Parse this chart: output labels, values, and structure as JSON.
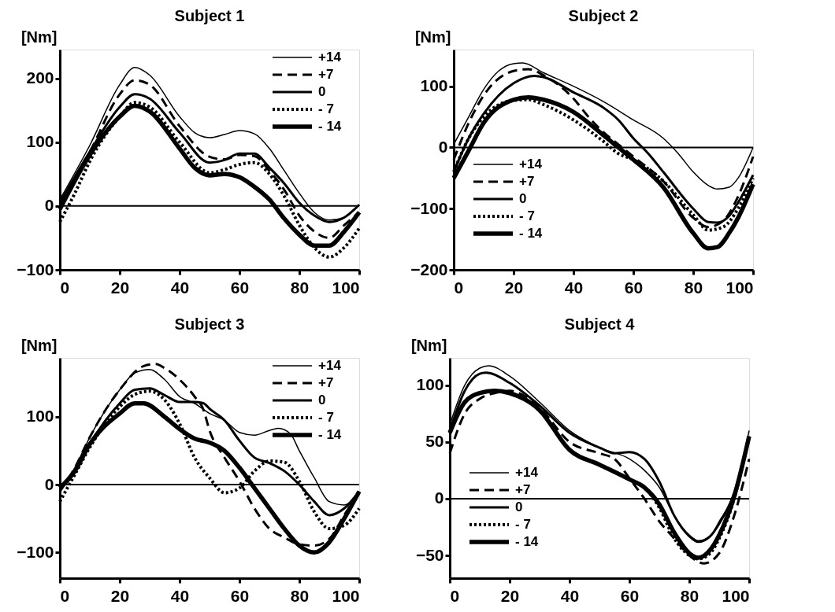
{
  "chart_data": [
    {
      "type": "line",
      "title": "Subject 1",
      "ylabel": "[Nm]",
      "xlim": [
        0,
        100
      ],
      "xticks": [
        0,
        20,
        40,
        60,
        80,
        100
      ],
      "ylim": [
        -100,
        245
      ],
      "yticks": [
        -100,
        0,
        100,
        200
      ],
      "grid": false,
      "legend": "top right",
      "marker": "none",
      "ref_lines": [
        {
          "axis": "y",
          "value": 0
        }
      ],
      "series": [
        {
          "name": "+14",
          "color": "#000000",
          "line_style": "solid",
          "x": [
            0,
            10,
            20,
            25,
            30,
            40,
            45,
            50,
            55,
            60,
            65,
            70,
            75,
            80,
            85,
            90,
            95,
            100
          ],
          "values": [
            10,
            95,
            190,
            217,
            205,
            140,
            115,
            107,
            112,
            118,
            113,
            90,
            55,
            20,
            -10,
            -22,
            -18,
            2
          ]
        },
        {
          "name": "+7",
          "color": "#000000",
          "line_style": "dashed",
          "x": [
            0,
            10,
            20,
            25,
            30,
            40,
            50,
            55,
            60,
            65,
            70,
            75,
            80,
            85,
            90,
            95,
            100
          ],
          "values": [
            5,
            85,
            175,
            197,
            190,
            125,
            77,
            73,
            80,
            78,
            55,
            25,
            -15,
            -40,
            -50,
            -30,
            -10
          ]
        },
        {
          "name": "0",
          "color": "#000000",
          "line_style": "solid",
          "x": [
            0,
            10,
            20,
            25,
            30,
            40,
            50,
            55,
            60,
            65,
            70,
            75,
            80,
            85,
            90,
            95,
            100
          ],
          "values": [
            5,
            85,
            155,
            175,
            168,
            115,
            68,
            72,
            82,
            82,
            60,
            35,
            5,
            -15,
            -25,
            -18,
            2
          ]
        },
        {
          "name": "- 7",
          "color": "#000000",
          "line_style": "dotted",
          "x": [
            0,
            5,
            10,
            20,
            25,
            30,
            40,
            50,
            55,
            60,
            65,
            70,
            75,
            80,
            85,
            90,
            95,
            100
          ],
          "values": [
            -25,
            20,
            70,
            140,
            162,
            155,
            100,
            52,
            57,
            65,
            68,
            50,
            15,
            -30,
            -65,
            -80,
            -65,
            -35
          ]
        },
        {
          "name": "- 14",
          "color": "#000000",
          "line_style": "solid",
          "x": [
            0,
            10,
            20,
            25,
            30,
            40,
            45,
            50,
            55,
            60,
            65,
            70,
            75,
            80,
            85,
            90,
            95,
            100
          ],
          "values": [
            -5,
            80,
            140,
            157,
            148,
            90,
            60,
            48,
            50,
            45,
            30,
            10,
            -20,
            -45,
            -62,
            -62,
            -40,
            -10
          ]
        }
      ]
    },
    {
      "type": "line",
      "title": "Subject 2",
      "ylabel": "[Nm]",
      "xlim": [
        0,
        100
      ],
      "xticks": [
        0,
        20,
        40,
        60,
        80,
        100
      ],
      "ylim": [
        -200,
        160
      ],
      "yticks": [
        -200,
        -100,
        0,
        100
      ],
      "grid": false,
      "legend": "bottom left",
      "marker": "none",
      "ref_lines": [
        {
          "axis": "y",
          "value": 0
        }
      ],
      "series": [
        {
          "name": "+14",
          "color": "#000000",
          "line_style": "solid",
          "x": [
            0,
            5,
            10,
            15,
            20,
            23,
            30,
            40,
            50,
            60,
            70,
            75,
            80,
            85,
            88,
            92,
            95,
            100
          ],
          "values": [
            5,
            50,
            95,
            125,
            137,
            138,
            122,
            100,
            75,
            45,
            15,
            -10,
            -40,
            -62,
            -68,
            -65,
            -50,
            0
          ]
        },
        {
          "name": "+7",
          "color": "#000000",
          "line_style": "dashed",
          "x": [
            0,
            5,
            10,
            20,
            25,
            30,
            40,
            45,
            50,
            55,
            60,
            70,
            80,
            85,
            90,
            95,
            100
          ],
          "values": [
            -20,
            40,
            85,
            125,
            128,
            118,
            80,
            50,
            25,
            5,
            -15,
            -55,
            -115,
            -130,
            -120,
            -80,
            -15
          ]
        },
        {
          "name": "0",
          "color": "#000000",
          "line_style": "solid",
          "x": [
            0,
            5,
            10,
            20,
            27,
            30,
            40,
            50,
            55,
            60,
            65,
            70,
            80,
            85,
            88,
            92,
            95,
            100
          ],
          "values": [
            -40,
            15,
            55,
            105,
            117,
            115,
            90,
            65,
            45,
            15,
            -10,
            -40,
            -100,
            -122,
            -123,
            -112,
            -90,
            -45
          ]
        },
        {
          "name": "- 7",
          "color": "#000000",
          "line_style": "dotted",
          "x": [
            0,
            5,
            10,
            20,
            25,
            30,
            40,
            50,
            55,
            60,
            70,
            80,
            85,
            90,
            95,
            100
          ],
          "values": [
            -40,
            15,
            50,
            77,
            78,
            70,
            45,
            10,
            -10,
            -20,
            -55,
            -110,
            -135,
            -130,
            -100,
            -50
          ]
        },
        {
          "name": "- 14",
          "color": "#000000",
          "line_style": "solid",
          "x": [
            0,
            5,
            10,
            20,
            25,
            30,
            40,
            50,
            55,
            60,
            70,
            80,
            85,
            88,
            92,
            95,
            100
          ],
          "values": [
            -50,
            -5,
            40,
            78,
            82,
            78,
            58,
            20,
            0,
            -20,
            -65,
            -140,
            -165,
            -163,
            -140,
            -115,
            -60
          ]
        }
      ]
    },
    {
      "type": "line",
      "title": "Subject 3",
      "ylabel": "[Nm]",
      "xlim": [
        0,
        100
      ],
      "xticks": [
        0,
        20,
        40,
        60,
        80,
        100
      ],
      "ylim": [
        -138,
        187
      ],
      "yticks": [
        -100,
        0,
        100
      ],
      "grid": false,
      "legend": "top right",
      "marker": "none",
      "ref_lines": [
        {
          "axis": "y",
          "value": 0
        }
      ],
      "series": [
        {
          "name": "+14",
          "color": "#000000",
          "line_style": "solid",
          "x": [
            0,
            5,
            10,
            20,
            25,
            30,
            35,
            40,
            45,
            50,
            55,
            60,
            65,
            70,
            73,
            77,
            80,
            85,
            90,
            95,
            100
          ],
          "values": [
            -10,
            25,
            70,
            140,
            165,
            170,
            155,
            130,
            120,
            105,
            95,
            77,
            73,
            80,
            83,
            75,
            50,
            10,
            -25,
            -30,
            -10
          ]
        },
        {
          "name": "+7",
          "color": "#000000",
          "line_style": "dashed",
          "x": [
            0,
            5,
            10,
            20,
            28,
            32,
            35,
            40,
            45,
            48,
            50,
            55,
            60,
            65,
            70,
            75,
            80,
            85,
            90,
            95,
            100
          ],
          "values": [
            -10,
            25,
            70,
            140,
            175,
            178,
            172,
            155,
            130,
            110,
            80,
            40,
            5,
            -35,
            -65,
            -78,
            -88,
            -90,
            -80,
            -45,
            -10
          ]
        },
        {
          "name": "0",
          "color": "#000000",
          "line_style": "solid",
          "x": [
            0,
            5,
            10,
            20,
            25,
            30,
            35,
            40,
            45,
            48,
            50,
            55,
            60,
            65,
            70,
            75,
            80,
            85,
            90,
            95,
            100
          ],
          "values": [
            -5,
            20,
            60,
            120,
            140,
            142,
            132,
            122,
            122,
            120,
            112,
            95,
            65,
            40,
            32,
            20,
            0,
            -25,
            -45,
            -35,
            -10
          ]
        },
        {
          "name": "- 7",
          "color": "#000000",
          "line_style": "dotted",
          "x": [
            0,
            5,
            10,
            20,
            25,
            30,
            35,
            40,
            45,
            50,
            55,
            60,
            65,
            70,
            75,
            80,
            85,
            90,
            95,
            100
          ],
          "values": [
            -25,
            15,
            55,
            115,
            133,
            138,
            125,
            90,
            40,
            10,
            -12,
            -5,
            20,
            35,
            33,
            5,
            -40,
            -65,
            -60,
            -35
          ]
        },
        {
          "name": "- 14",
          "color": "#000000",
          "line_style": "solid",
          "x": [
            0,
            5,
            10,
            20,
            25,
            28,
            35,
            40,
            45,
            50,
            55,
            60,
            65,
            70,
            75,
            80,
            85,
            90,
            95,
            100
          ],
          "values": [
            -5,
            20,
            60,
            105,
            120,
            120,
            100,
            82,
            68,
            62,
            50,
            25,
            -5,
            -35,
            -65,
            -90,
            -100,
            -85,
            -50,
            -10
          ]
        }
      ]
    },
    {
      "type": "line",
      "title": "Subject 4",
      "ylabel": "[Nm]",
      "xlim": [
        0,
        100
      ],
      "xticks": [
        0,
        20,
        40,
        60,
        80,
        100
      ],
      "ylim": [
        -70,
        124
      ],
      "yticks": [
        -50,
        0,
        50,
        100
      ],
      "grid": false,
      "legend": "bottom left",
      "marker": "none",
      "ref_lines": [
        {
          "axis": "y",
          "value": 0
        }
      ],
      "series": [
        {
          "name": "+14",
          "color": "#000000",
          "line_style": "solid",
          "x": [
            0,
            5,
            10,
            13,
            20,
            30,
            40,
            50,
            60,
            65,
            70,
            75,
            80,
            83,
            87,
            90,
            95,
            100
          ],
          "values": [
            65,
            100,
            115,
            117,
            108,
            85,
            60,
            45,
            35,
            25,
            10,
            -15,
            -32,
            -37,
            -33,
            -20,
            5,
            60
          ]
        },
        {
          "name": "+7",
          "color": "#000000",
          "line_style": "dashed",
          "x": [
            0,
            5,
            10,
            15,
            20,
            30,
            40,
            50,
            55,
            60,
            65,
            70,
            75,
            80,
            85,
            90,
            95,
            100
          ],
          "values": [
            40,
            75,
            88,
            93,
            95,
            80,
            50,
            40,
            35,
            18,
            0,
            -20,
            -35,
            -50,
            -57,
            -48,
            -15,
            35
          ]
        },
        {
          "name": "0",
          "color": "#000000",
          "line_style": "solid",
          "x": [
            0,
            5,
            10,
            12,
            20,
            30,
            40,
            50,
            55,
            60,
            65,
            70,
            75,
            80,
            83,
            87,
            90,
            95,
            100
          ],
          "values": [
            60,
            95,
            110,
            111,
            102,
            82,
            58,
            45,
            40,
            41,
            35,
            15,
            -15,
            -33,
            -38,
            -33,
            -22,
            5,
            55
          ]
        },
        {
          "name": "- 7",
          "color": "#000000",
          "line_style": "dotted",
          "x": [
            0,
            5,
            10,
            15,
            20,
            30,
            40,
            50,
            60,
            65,
            70,
            75,
            80,
            83,
            87,
            90,
            95,
            100
          ],
          "values": [
            58,
            85,
            93,
            95,
            93,
            78,
            43,
            30,
            17,
            10,
            -8,
            -35,
            -50,
            -53,
            -48,
            -35,
            0,
            55
          ]
        },
        {
          "name": "- 14",
          "color": "#000000",
          "line_style": "solid",
          "x": [
            0,
            5,
            10,
            15,
            20,
            30,
            40,
            50,
            60,
            65,
            70,
            75,
            80,
            83,
            87,
            90,
            95,
            100
          ],
          "values": [
            58,
            85,
            93,
            95,
            93,
            78,
            43,
            30,
            17,
            10,
            -5,
            -30,
            -48,
            -52,
            -45,
            -32,
            2,
            55
          ]
        }
      ]
    }
  ]
}
